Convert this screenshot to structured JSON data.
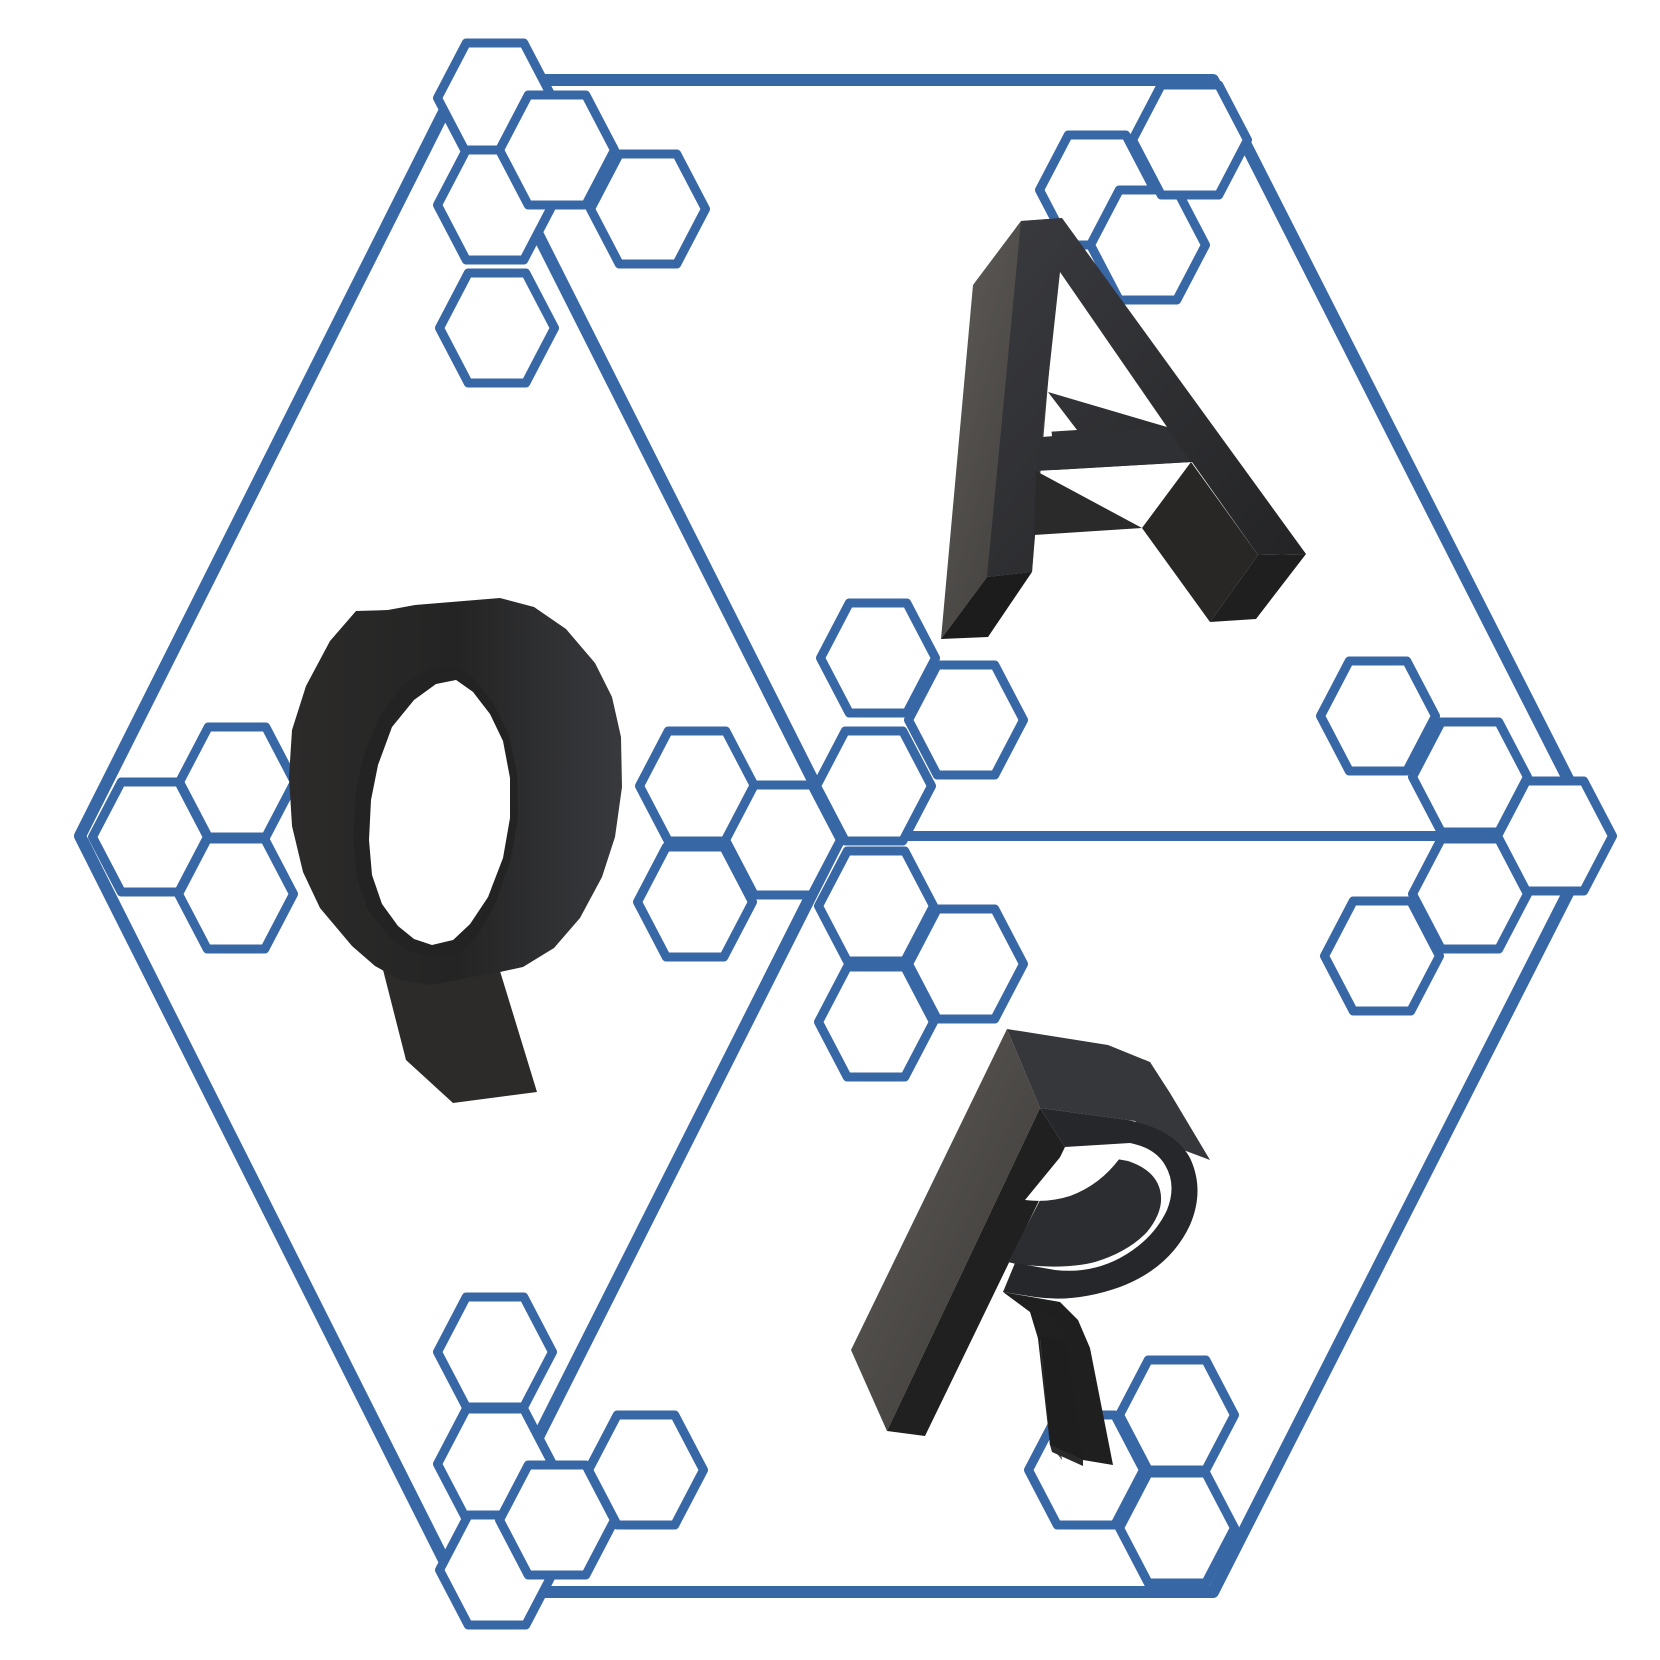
{
  "logo": {
    "letters": {
      "left": "Q",
      "top_right": "A",
      "bottom_right": "R"
    },
    "colors": {
      "frame": "#3867a6",
      "letter_face": "#2e2f33",
      "letter_dark": "#1f1f20",
      "letter_side": "#5a5856",
      "background": "#ffffff"
    }
  }
}
